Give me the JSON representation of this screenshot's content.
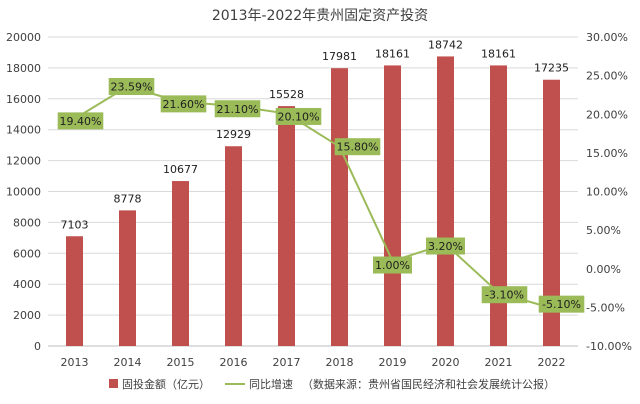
{
  "chart_data": {
    "type": "bar",
    "title": "2013年-2022年贵州固定资产投资",
    "categories": [
      "2013",
      "2014",
      "2015",
      "2016",
      "2017",
      "2018",
      "2019",
      "2020",
      "2021",
      "2022"
    ],
    "series": [
      {
        "name": "固投金额（亿元）",
        "type": "bar",
        "axis": "left",
        "color": "#c0504d",
        "values": [
          7103,
          8778,
          10677,
          12929,
          15528,
          17981,
          18161,
          18742,
          18161,
          17235
        ],
        "labels": [
          "7103",
          "8778",
          "10677",
          "12929",
          "15528",
          "17981",
          "18161",
          "18742",
          "18161",
          "17235"
        ]
      },
      {
        "name": "同比增速",
        "type": "line",
        "axis": "right",
        "color": "#9bbb59",
        "values": [
          19.4,
          23.59,
          21.6,
          21.1,
          20.1,
          15.8,
          1.0,
          3.2,
          -3.1,
          -5.1
        ],
        "labels": [
          "19.40%",
          "23.59%",
          "21.60%",
          "21.10%",
          "20.10%",
          "15.80%",
          "1.00%",
          "3.20%",
          "-3.10%",
          "-5.10%"
        ]
      }
    ],
    "left_axis": {
      "ylim": [
        0,
        20000
      ],
      "ticks": [
        0,
        2000,
        4000,
        6000,
        8000,
        10000,
        12000,
        14000,
        16000,
        18000,
        20000
      ],
      "tick_labels": [
        "0",
        "2000",
        "4000",
        "6000",
        "8000",
        "10000",
        "12000",
        "14000",
        "16000",
        "18000",
        "20000"
      ]
    },
    "right_axis": {
      "ylim": [
        -10,
        30
      ],
      "ticks": [
        -10,
        -5,
        0,
        5,
        10,
        15,
        20,
        25,
        30
      ],
      "tick_labels": [
        "-10.00%",
        "-5.00%",
        "0.00%",
        "5.00%",
        "10.00%",
        "15.00%",
        "20.00%",
        "25.00%",
        "30.00%"
      ]
    },
    "grid": true,
    "legend_placement": "bottom",
    "legend_note": "（数据来源：贵州省国民经济和社会发展统计公报）",
    "label_box_color": "#9bbb59"
  }
}
